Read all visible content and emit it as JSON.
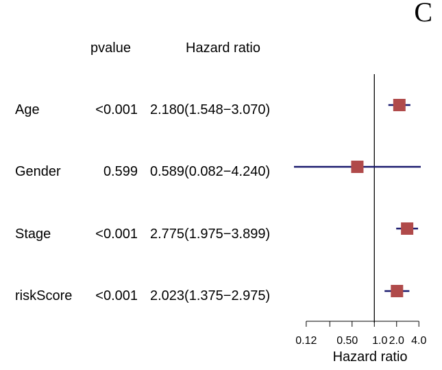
{
  "panel_label": "C",
  "chart_data": {
    "type": "forest",
    "columns": {
      "pvalue": "pvalue",
      "hazard": "Hazard ratio"
    },
    "xlabel": "Hazard ratio",
    "x_scale": "log",
    "xlim": [
      0.082,
      4.24
    ],
    "reference_line": 1.0,
    "ticks": [
      {
        "value": 0.12,
        "label": "0.12"
      },
      {
        "value": 0.25,
        "label": ""
      },
      {
        "value": 0.5,
        "label": "0.50"
      },
      {
        "value": 1.0,
        "label": "1.0"
      },
      {
        "value": 2.0,
        "label": "2.0"
      },
      {
        "value": 4.0,
        "label": "4.0"
      }
    ],
    "rows": [
      {
        "name": "Age",
        "pvalue": "<0.001",
        "hr_text": "2.180(1.548−3.070)",
        "hr": 2.18,
        "lower": 1.548,
        "upper": 3.07
      },
      {
        "name": "Gender",
        "pvalue": "0.599",
        "hr_text": "0.589(0.082−4.240)",
        "hr": 0.589,
        "lower": 0.082,
        "upper": 4.24
      },
      {
        "name": "Stage",
        "pvalue": "<0.001",
        "hr_text": "2.775(1.975−3.899)",
        "hr": 2.775,
        "lower": 1.975,
        "upper": 3.899
      },
      {
        "name": "riskScore",
        "pvalue": "<0.001",
        "hr_text": "2.023(1.375−2.975)",
        "hr": 2.023,
        "lower": 1.375,
        "upper": 2.975
      }
    ],
    "colors": {
      "ci_line": "#1a1a6e",
      "box": "#b04a4a",
      "axis": "#000000"
    }
  }
}
